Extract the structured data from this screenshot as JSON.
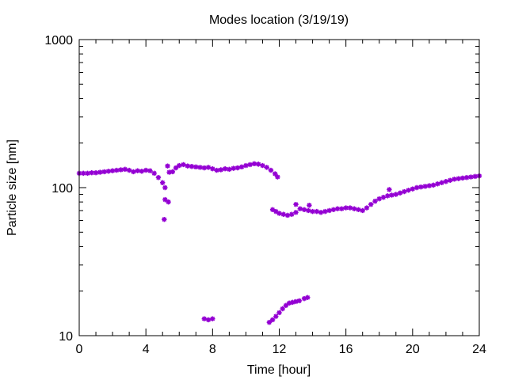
{
  "chart_data": {
    "type": "scatter",
    "title": "Modes location (3/19/19)",
    "xlabel": "Time [hour]",
    "ylabel": "Particle size [nm]",
    "xlim": [
      0,
      24
    ],
    "ylim": [
      10,
      1000
    ],
    "yscale": "log",
    "grid": false,
    "legend": "none",
    "marker_color": "#9400d3",
    "xticks": [
      0,
      4,
      8,
      12,
      16,
      20,
      24
    ],
    "yticks": [
      10,
      100,
      1000
    ],
    "series": [
      {
        "name": "",
        "points": [
          [
            0.0,
            125
          ],
          [
            0.25,
            125
          ],
          [
            0.5,
            125
          ],
          [
            0.75,
            126
          ],
          [
            1.0,
            126
          ],
          [
            1.25,
            127
          ],
          [
            1.5,
            128
          ],
          [
            1.75,
            129
          ],
          [
            2.0,
            130
          ],
          [
            2.25,
            131
          ],
          [
            2.5,
            132
          ],
          [
            2.75,
            133
          ],
          [
            3.0,
            131
          ],
          [
            3.25,
            128
          ],
          [
            3.5,
            130
          ],
          [
            3.75,
            129
          ],
          [
            4.0,
            131
          ],
          [
            4.25,
            130
          ],
          [
            4.5,
            125
          ],
          [
            4.75,
            117
          ],
          [
            5.0,
            108
          ],
          [
            5.15,
            100
          ],
          [
            5.4,
            127
          ],
          [
            5.6,
            128
          ],
          [
            5.8,
            136
          ],
          [
            6.0,
            141
          ],
          [
            6.25,
            143
          ],
          [
            6.5,
            140
          ],
          [
            6.75,
            139
          ],
          [
            7.0,
            138
          ],
          [
            7.25,
            137
          ],
          [
            7.5,
            136
          ],
          [
            7.75,
            137
          ],
          [
            8.0,
            134
          ],
          [
            8.25,
            131
          ],
          [
            8.5,
            132
          ],
          [
            8.75,
            134
          ],
          [
            9.0,
            133
          ],
          [
            9.25,
            135
          ],
          [
            9.5,
            136
          ],
          [
            9.75,
            138
          ],
          [
            10.0,
            141
          ],
          [
            10.25,
            143
          ],
          [
            10.5,
            145
          ],
          [
            10.75,
            144
          ],
          [
            11.0,
            141
          ],
          [
            11.25,
            137
          ],
          [
            11.5,
            131
          ],
          [
            11.75,
            124
          ],
          [
            11.9,
            118
          ],
          [
            11.6,
            71
          ],
          [
            11.8,
            69
          ],
          [
            12.0,
            67
          ],
          [
            12.25,
            66
          ],
          [
            12.5,
            65
          ],
          [
            12.75,
            66
          ],
          [
            13.0,
            68
          ],
          [
            13.25,
            72
          ],
          [
            13.5,
            71
          ],
          [
            13.75,
            70
          ],
          [
            14.0,
            69
          ],
          [
            14.25,
            69
          ],
          [
            14.5,
            68
          ],
          [
            14.75,
            69
          ],
          [
            15.0,
            70
          ],
          [
            15.25,
            71
          ],
          [
            15.5,
            72
          ],
          [
            15.75,
            72
          ],
          [
            16.0,
            73
          ],
          [
            16.25,
            73
          ],
          [
            16.5,
            72
          ],
          [
            16.75,
            71
          ],
          [
            17.0,
            70
          ],
          [
            17.25,
            73
          ],
          [
            17.5,
            77
          ],
          [
            17.75,
            81
          ],
          [
            18.0,
            84
          ],
          [
            18.25,
            86
          ],
          [
            18.5,
            88
          ],
          [
            18.75,
            89
          ],
          [
            19.0,
            90
          ],
          [
            19.25,
            92
          ],
          [
            19.5,
            94
          ],
          [
            19.75,
            96
          ],
          [
            20.0,
            98
          ],
          [
            20.25,
            100
          ],
          [
            20.5,
            101
          ],
          [
            20.75,
            102
          ],
          [
            21.0,
            103
          ],
          [
            21.25,
            104
          ],
          [
            21.5,
            106
          ],
          [
            21.75,
            108
          ],
          [
            22.0,
            110
          ],
          [
            22.25,
            112
          ],
          [
            22.5,
            114
          ],
          [
            22.75,
            115
          ],
          [
            23.0,
            116
          ],
          [
            23.25,
            117
          ],
          [
            23.5,
            118
          ],
          [
            23.75,
            119
          ],
          [
            24.0,
            120
          ],
          [
            5.1,
            61
          ],
          [
            5.15,
            83
          ],
          [
            5.35,
            80
          ],
          [
            5.3,
            140
          ],
          [
            13.0,
            77
          ],
          [
            13.8,
            76
          ],
          [
            18.6,
            97
          ],
          [
            7.5,
            13
          ],
          [
            7.75,
            12.8
          ],
          [
            8.0,
            13
          ],
          [
            11.4,
            12.3
          ],
          [
            11.6,
            12.8
          ],
          [
            11.8,
            13.5
          ],
          [
            12.0,
            14.3
          ],
          [
            12.2,
            15.2
          ],
          [
            12.4,
            16.0
          ],
          [
            12.6,
            16.6
          ],
          [
            12.8,
            16.8
          ],
          [
            13.0,
            17.0
          ],
          [
            13.2,
            17.2
          ],
          [
            13.5,
            17.8
          ],
          [
            13.7,
            18.1
          ]
        ]
      }
    ]
  }
}
